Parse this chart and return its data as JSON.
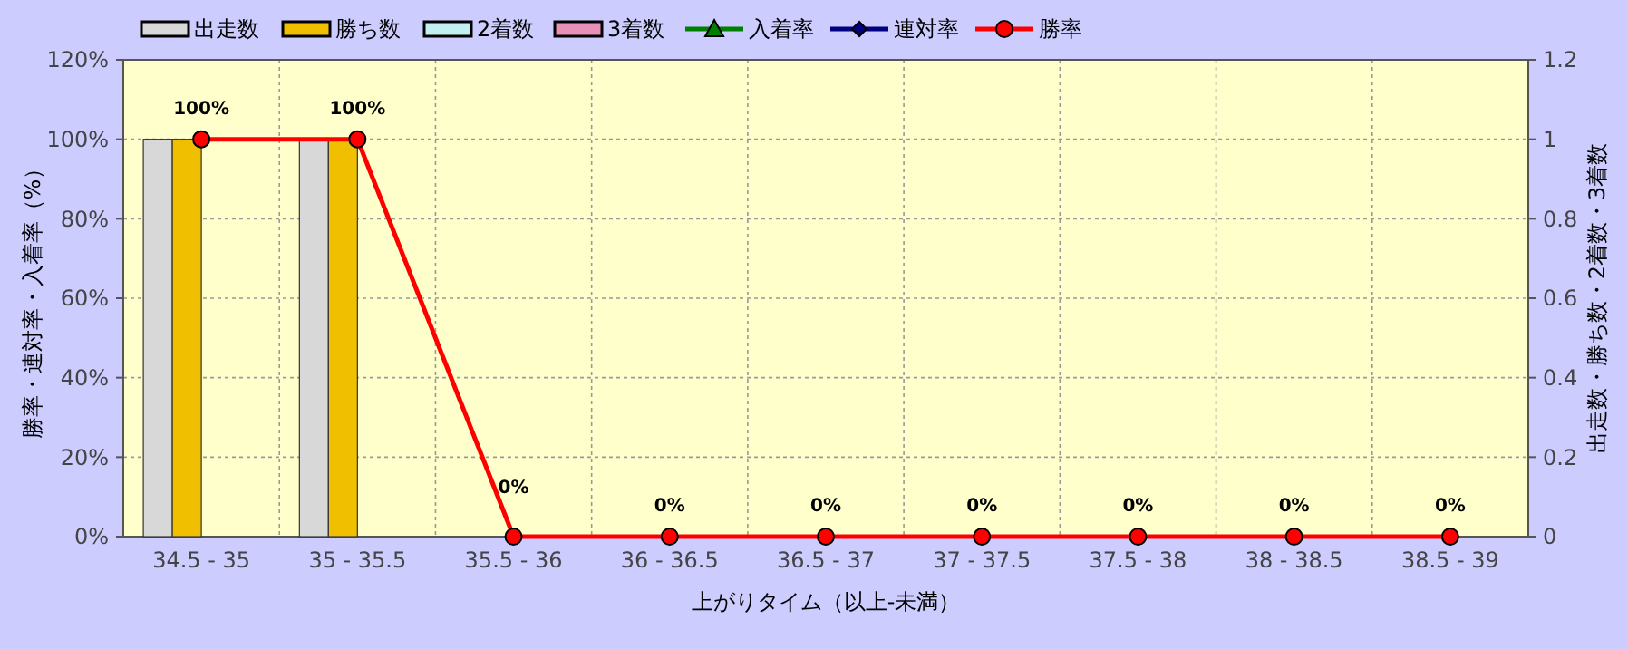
{
  "chart_data": {
    "type": "bar",
    "xlabel": "上がりタイム（以上-未満）",
    "ylabel": "勝率・連対率・入着率（%）",
    "y2label": "出走数・勝ち数・2着数・3着数",
    "categories": [
      "34.5 - 35",
      "35 - 35.5",
      "35.5 - 36",
      "36 - 36.5",
      "36.5 - 37",
      "37 - 37.5",
      "37.5 - 38",
      "38 - 38.5",
      "38.5 - 39"
    ],
    "series": [
      {
        "name": "出走数",
        "axis": "y2",
        "color": "#d8d8d8",
        "values": [
          1,
          1,
          0,
          0,
          0,
          0,
          0,
          0,
          0
        ]
      },
      {
        "name": "勝ち数",
        "axis": "y2",
        "color": "#f0c000",
        "values": [
          1,
          1,
          0,
          0,
          0,
          0,
          0,
          0,
          0
        ]
      },
      {
        "name": "2着数",
        "axis": "y2",
        "color": "#c0f0f0",
        "values": [
          0,
          0,
          0,
          0,
          0,
          0,
          0,
          0,
          0
        ]
      },
      {
        "name": "3着数",
        "axis": "y2",
        "color": "#e890b8",
        "values": [
          0,
          0,
          0,
          0,
          0,
          0,
          0,
          0,
          0
        ]
      },
      {
        "name": "入着率",
        "type": "line",
        "color": "#008000",
        "marker": "triangle",
        "values": [
          null,
          null,
          null,
          null,
          null,
          null,
          null,
          null,
          null
        ]
      },
      {
        "name": "連対率",
        "type": "line",
        "color": "#000080",
        "marker": "diamond",
        "values": [
          null,
          null,
          null,
          null,
          null,
          null,
          null,
          null,
          null
        ]
      },
      {
        "name": "勝率",
        "type": "line",
        "color": "#ff0000",
        "marker": "circle",
        "values": [
          100,
          100,
          0,
          0,
          0,
          0,
          0,
          0,
          0
        ],
        "value_labels": [
          "100%",
          "100%",
          "0%",
          "0%",
          "0%",
          "0%",
          "0%",
          "0%",
          "0%"
        ]
      }
    ],
    "ylim": [
      0,
      120
    ],
    "yticks": [
      {
        "value": 0,
        "label": "0%"
      },
      {
        "value": 20,
        "label": "20%"
      },
      {
        "value": 40,
        "label": "40%"
      },
      {
        "value": 60,
        "label": "60%"
      },
      {
        "value": 80,
        "label": "80%"
      },
      {
        "value": 100,
        "label": "100%"
      },
      {
        "value": 120,
        "label": "120%"
      }
    ],
    "y2lim": [
      0,
      1.2
    ],
    "y2ticks": [
      0,
      0.2,
      0.4,
      0.6,
      0.8,
      1,
      1.2
    ],
    "grid": true,
    "legend": "top"
  }
}
